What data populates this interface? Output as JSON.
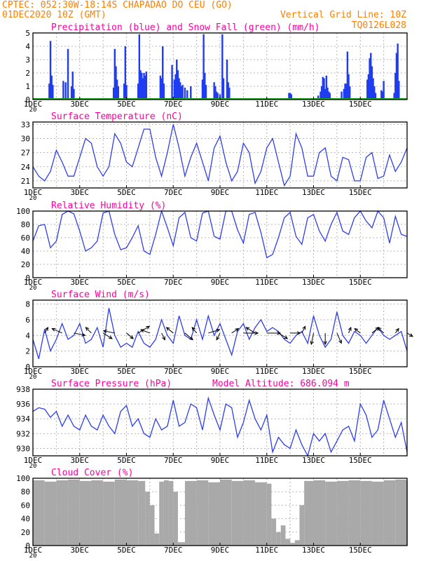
{
  "header": {
    "line1": "CPTEC:   052:30W-18:14S   CHAPADAO DO CEU (GO)",
    "line2_left": "01DEC2020 10Z (GMT)",
    "line2_right": "Vertical Grid Line: 10Z",
    "line3_right": "TQ0126L028",
    "color": "#ff7f00"
  },
  "x_ticks": [
    "1DEC",
    "3DEC",
    "5DEC",
    "7DEC",
    "9DEC",
    "11DEC",
    "13DEC",
    "15DEC"
  ],
  "year_fragment": "20",
  "colors": {
    "title": "#ff00a0",
    "line": "#2f3fe8",
    "precip": "#1f3cf0",
    "snow": "#1aa81a",
    "cloud": "#a9a9a9",
    "grid": "#b4b4b4"
  },
  "chart_data": [
    {
      "type": "bar",
      "title": "Precipitation (blue) and Snow Fall (green) (mm/h)",
      "ylim": [
        0,
        5
      ],
      "yticks": [
        "0",
        "1",
        "2",
        "3",
        "4",
        "5"
      ],
      "series": [
        {
          "name": "Precipitation",
          "x": [
            0.7,
            0.75,
            0.8,
            0.85,
            1.3,
            1.4,
            1.5,
            1.65,
            1.7,
            1.75,
            3.45,
            3.5,
            3.55,
            3.6,
            3.65,
            3.9,
            3.95,
            4.0,
            4.5,
            4.55,
            4.6,
            4.65,
            4.7,
            4.75,
            4.8,
            4.85,
            5.45,
            5.5,
            5.55,
            5.6,
            5.95,
            6.05,
            6.1,
            6.15,
            6.2,
            6.25,
            6.3,
            6.35,
            6.4,
            6.5,
            6.6,
            6.75,
            7.25,
            7.3,
            7.35,
            7.4,
            7.75,
            7.8,
            7.85,
            7.9,
            8.0,
            8.1,
            8.15,
            8.3,
            8.35,
            8.4,
            10.95,
            11.0,
            11.05,
            12.2,
            12.3,
            12.35,
            12.4,
            12.45,
            12.5,
            12.55,
            12.6,
            12.65,
            12.7,
            13.2,
            13.3,
            13.35,
            13.4,
            13.45,
            13.5,
            13.55,
            14.3,
            14.35,
            14.4,
            14.45,
            14.5,
            14.55,
            14.6,
            14.65,
            14.9,
            14.95,
            15.0,
            15.45,
            15.5,
            15.55,
            15.6,
            15.65
          ],
          "values": [
            1.2,
            4.4,
            1.8,
            1.1,
            1.4,
            1.3,
            3.8,
            1.0,
            2.1,
            0.8,
            0.9,
            3.8,
            2.5,
            1.5,
            1.0,
            1.2,
            4.0,
            1.1,
            1.2,
            4.9,
            2.2,
            2.0,
            1.6,
            2.0,
            1.8,
            2.1,
            1.8,
            1.6,
            4.0,
            1.2,
            2.6,
            1.5,
            1.9,
            3.0,
            2.2,
            1.6,
            1.3,
            1.0,
            1.1,
            0.9,
            0.7,
            1.0,
            1.5,
            4.9,
            2.0,
            1.1,
            1.3,
            1.0,
            0.6,
            0.5,
            0.4,
            4.9,
            1.6,
            3.0,
            1.3,
            0.9,
            0.5,
            0.5,
            0.4,
            0.3,
            0.6,
            1.0,
            1.7,
            1.6,
            0.8,
            1.8,
            0.9,
            0.6,
            0.5,
            0.6,
            0.8,
            1.2,
            1.2,
            3.6,
            1.9,
            1.0,
            1.5,
            1.9,
            3.1,
            3.5,
            2.5,
            1.6,
            1.0,
            0.5,
            0.7,
            0.6,
            1.4,
            0.5,
            2.0,
            3.5,
            4.2,
            1.4
          ]
        },
        {
          "name": "Snow Fall",
          "x": [
            0,
            16
          ],
          "values": [
            0,
            0
          ]
        }
      ]
    },
    {
      "type": "line",
      "title": "Surface Temperature (nC)",
      "ylim": [
        19.5,
        33.5
      ],
      "yticks": [
        "21",
        "24",
        "27",
        "30",
        "33"
      ],
      "x": [
        0,
        0.25,
        0.5,
        0.75,
        1.0,
        1.25,
        1.5,
        1.75,
        2.0,
        2.25,
        2.5,
        2.75,
        3.0,
        3.25,
        3.5,
        3.75,
        4.0,
        4.25,
        4.5,
        4.75,
        5.0,
        5.25,
        5.5,
        5.75,
        6.0,
        6.25,
        6.5,
        6.75,
        7.0,
        7.25,
        7.5,
        7.75,
        8.0,
        8.25,
        8.5,
        8.75,
        9.0,
        9.25,
        9.5,
        9.75,
        10.0,
        10.25,
        10.5,
        10.75,
        11.0,
        11.25,
        11.5,
        11.75,
        12.0,
        12.25,
        12.5,
        12.75,
        13.0,
        13.25,
        13.5,
        13.75,
        14.0,
        14.25,
        14.5,
        14.75,
        15.0,
        15.25,
        15.5,
        15.75,
        16.0
      ],
      "values": [
        24,
        22,
        21,
        23,
        27.5,
        25,
        22,
        22,
        26,
        30,
        29,
        24,
        22,
        24,
        31,
        29,
        25,
        24,
        28,
        32,
        32,
        26,
        22,
        27,
        33,
        28,
        22,
        26,
        29,
        25,
        21,
        28,
        30.5,
        25,
        21,
        23,
        29,
        27,
        20.5,
        23,
        28,
        30,
        25,
        20,
        22,
        31,
        28,
        22,
        22,
        27,
        28,
        22,
        21,
        26,
        25.5,
        21,
        21,
        26,
        27,
        21.5,
        22,
        26.5,
        23,
        25,
        28
      ]
    },
    {
      "type": "line",
      "title": "Relative Humidity (%)",
      "ylim": [
        0,
        100
      ],
      "yticks": [
        "0",
        "20",
        "40",
        "60",
        "80",
        "100"
      ],
      "x": [
        0,
        0.25,
        0.5,
        0.75,
        1.0,
        1.25,
        1.5,
        1.75,
        2.0,
        2.25,
        2.5,
        2.75,
        3.0,
        3.25,
        3.5,
        3.75,
        4.0,
        4.25,
        4.5,
        4.75,
        5.0,
        5.25,
        5.5,
        5.75,
        6.0,
        6.25,
        6.5,
        6.75,
        7.0,
        7.25,
        7.5,
        7.75,
        8.0,
        8.25,
        8.5,
        8.75,
        9.0,
        9.25,
        9.5,
        9.75,
        10.0,
        10.25,
        10.5,
        10.75,
        11.0,
        11.25,
        11.5,
        11.75,
        12.0,
        12.25,
        12.5,
        12.75,
        13.0,
        13.25,
        13.5,
        13.75,
        14.0,
        14.25,
        14.5,
        14.75,
        15.0,
        15.25,
        15.5,
        15.75,
        16.0
      ],
      "values": [
        55,
        78,
        80,
        45,
        55,
        95,
        100,
        96,
        70,
        40,
        45,
        55,
        97,
        100,
        65,
        42,
        45,
        60,
        78,
        40,
        35,
        65,
        100,
        75,
        48,
        90,
        98,
        60,
        55,
        97,
        100,
        62,
        58,
        100,
        100,
        72,
        52,
        95,
        98,
        68,
        30,
        35,
        60,
        90,
        98,
        62,
        50,
        90,
        95,
        70,
        55,
        80,
        98,
        70,
        65,
        90,
        100,
        85,
        75,
        100,
        90,
        52,
        92,
        65,
        62
      ]
    },
    {
      "type": "line",
      "title": "Surface Wind (m/s)",
      "ylim": [
        0,
        8.5
      ],
      "yticks": [
        "0",
        "2",
        "4",
        "6",
        "8"
      ],
      "x": [
        0,
        0.25,
        0.5,
        0.75,
        1.0,
        1.25,
        1.5,
        1.75,
        2.0,
        2.25,
        2.5,
        2.75,
        3.0,
        3.25,
        3.5,
        3.75,
        4.0,
        4.25,
        4.5,
        4.75,
        5.0,
        5.25,
        5.5,
        5.75,
        6.0,
        6.25,
        6.5,
        6.75,
        7.0,
        7.25,
        7.5,
        7.75,
        8.0,
        8.25,
        8.5,
        8.75,
        9.0,
        9.25,
        9.5,
        9.75,
        10.0,
        10.25,
        10.5,
        10.75,
        11.0,
        11.25,
        11.5,
        11.75,
        12.0,
        12.25,
        12.5,
        12.75,
        13.0,
        13.25,
        13.5,
        13.75,
        14.0,
        14.25,
        14.5,
        14.75,
        15.0,
        15.25,
        15.5,
        15.75,
        16.0
      ],
      "values": [
        3.5,
        1.0,
        4.8,
        2.0,
        3.5,
        5.5,
        3.5,
        4.0,
        5.5,
        3.0,
        3.5,
        5.0,
        2.5,
        7.5,
        4.0,
        2.5,
        3.0,
        2.5,
        4.5,
        3.0,
        2.5,
        3.5,
        6.0,
        4.0,
        3.0,
        6.5,
        4.0,
        3.5,
        6.0,
        3.5,
        6.5,
        4.0,
        5.5,
        3.5,
        1.5,
        4.5,
        5.5,
        3.5,
        5.0,
        6.0,
        4.5,
        5.0,
        4.5,
        3.5,
        3.0,
        4.0,
        4.5,
        3.0,
        6.5,
        4.0,
        2.5,
        3.5,
        7.0,
        4.0,
        3.0,
        4.5,
        4.0,
        3.0,
        4.0,
        5.0,
        4.0,
        3.5,
        4.0,
        4.5,
        2.0
      ],
      "vectors": {
        "x": [
          0.5,
          1.25,
          1.75,
          2.5,
          3.0,
          3.5,
          4.0,
          4.5,
          5.0,
          5.5,
          6.0,
          6.5,
          7.0,
          7.5,
          8.0,
          8.5,
          9.0,
          9.5,
          10.0,
          10.5,
          11.0,
          11.5,
          12.0,
          12.5,
          13.0,
          13.5,
          14.0,
          14.5,
          15.0,
          15.5,
          16.0
        ],
        "u": [
          0.3,
          -0.9,
          1.0,
          -0.5,
          0.8,
          -1.0,
          0.6,
          1.0,
          -0.8,
          0.3,
          -0.6,
          0.7,
          -0.4,
          1.0,
          -0.3,
          0.6,
          1.3,
          -0.8,
          1.2,
          0.8,
          0.9,
          0.3,
          -0.2,
          0,
          0.4,
          0.2,
          -0.5,
          0.6,
          -0.5,
          0.3,
          0.5
        ],
        "v": [
          0.5,
          0.4,
          -0.2,
          0.5,
          -0.5,
          0.2,
          -0.5,
          0.6,
          0.3,
          -0.6,
          0.5,
          -0.6,
          0.5,
          0.3,
          -0.6,
          0.4,
          0,
          0.5,
          0,
          -0.5,
          0,
          0.6,
          -1.0,
          -1.0,
          -0.9,
          0.5,
          0.4,
          0.5,
          0.5,
          0.4,
          -0.3
        ]
      }
    },
    {
      "type": "line",
      "title": "Surface Pressure (hPa)",
      "annotation": "Model Altitude: 686.094 m",
      "ylim": [
        929,
        938
      ],
      "yticks": [
        "930",
        "932",
        "934",
        "936",
        "938"
      ],
      "x": [
        0,
        0.25,
        0.5,
        0.75,
        1.0,
        1.25,
        1.5,
        1.75,
        2.0,
        2.25,
        2.5,
        2.75,
        3.0,
        3.25,
        3.5,
        3.75,
        4.0,
        4.25,
        4.5,
        4.75,
        5.0,
        5.25,
        5.5,
        5.75,
        6.0,
        6.25,
        6.5,
        6.75,
        7.0,
        7.25,
        7.5,
        7.75,
        8.0,
        8.25,
        8.5,
        8.75,
        9.0,
        9.25,
        9.5,
        9.75,
        10.0,
        10.25,
        10.5,
        10.75,
        11.0,
        11.25,
        11.5,
        11.75,
        12.0,
        12.25,
        12.5,
        12.75,
        13.0,
        13.25,
        13.5,
        13.75,
        14.0,
        14.25,
        14.5,
        14.75,
        15.0,
        15.25,
        15.5,
        15.75,
        16.0
      ],
      "values": [
        935.0,
        935.5,
        935.3,
        934.2,
        935.0,
        933.0,
        934.5,
        933.0,
        932.5,
        934.5,
        933.0,
        932.5,
        934.5,
        933.0,
        932.0,
        935.0,
        935.8,
        933.0,
        934.0,
        932.0,
        931.5,
        934.0,
        932.5,
        933.0,
        936.5,
        933.0,
        933.5,
        936.0,
        935.5,
        932.5,
        936.8,
        934.5,
        932.5,
        936.0,
        935.5,
        931.5,
        933.5,
        936.5,
        934.0,
        932.5,
        934.5,
        929.5,
        931.5,
        930.5,
        930.0,
        932.5,
        930.5,
        929.0,
        932.0,
        931.0,
        932.0,
        929.5,
        931.0,
        932.5,
        933.0,
        931.0,
        936.0,
        934.5,
        931.5,
        932.5,
        936.5,
        934.0,
        931.5,
        933.5,
        929.5
      ]
    },
    {
      "type": "bar",
      "title": "Cloud Cover (%)",
      "ylim": [
        0,
        100
      ],
      "yticks": [
        "0",
        "20",
        "40",
        "60",
        "80",
        "100"
      ],
      "x": [
        0,
        0.5,
        1.0,
        1.5,
        2.0,
        2.5,
        3.0,
        3.5,
        4.0,
        4.5,
        4.8,
        5.0,
        5.2,
        5.4,
        5.6,
        5.8,
        6.0,
        6.2,
        6.5,
        7.0,
        7.5,
        8.0,
        8.5,
        9.0,
        9.5,
        10.0,
        10.2,
        10.4,
        10.6,
        10.8,
        11.0,
        11.2,
        11.4,
        11.6,
        12.0,
        12.5,
        13.0,
        13.5,
        14.0,
        14.5,
        15.0,
        15.5,
        16.0
      ],
      "values": [
        97,
        95,
        97,
        98,
        96,
        97,
        95,
        98,
        97,
        96,
        80,
        60,
        18,
        95,
        97,
        96,
        80,
        5,
        96,
        97,
        94,
        98,
        96,
        97,
        94,
        92,
        40,
        20,
        30,
        10,
        4,
        8,
        60,
        96,
        97,
        95,
        96,
        97,
        96,
        95,
        97,
        98,
        96
      ]
    }
  ]
}
